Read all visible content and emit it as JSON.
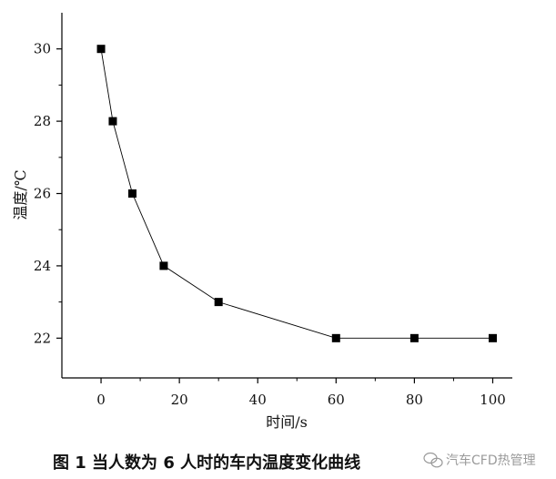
{
  "chart_data": {
    "type": "line",
    "title": "",
    "xlabel": "时间/s",
    "ylabel": "温度/℃",
    "xlim": [
      -10,
      105
    ],
    "ylim": [
      20.9,
      31
    ],
    "x_ticks": [
      0,
      20,
      40,
      60,
      80,
      100
    ],
    "y_ticks": [
      22,
      24,
      26,
      28,
      30
    ],
    "grid": false,
    "legend": "none",
    "marker": "square",
    "series": [
      {
        "color": "#000000",
        "x": [
          0,
          3,
          8,
          16,
          30,
          60,
          80,
          100
        ],
        "y": [
          30,
          28,
          26,
          24,
          23,
          22,
          22,
          22
        ]
      }
    ]
  },
  "caption": {
    "text": "图 1 当人数为 6 人时的车内温度变化曲线"
  },
  "watermark": {
    "text": "汽车CFD热管理"
  }
}
